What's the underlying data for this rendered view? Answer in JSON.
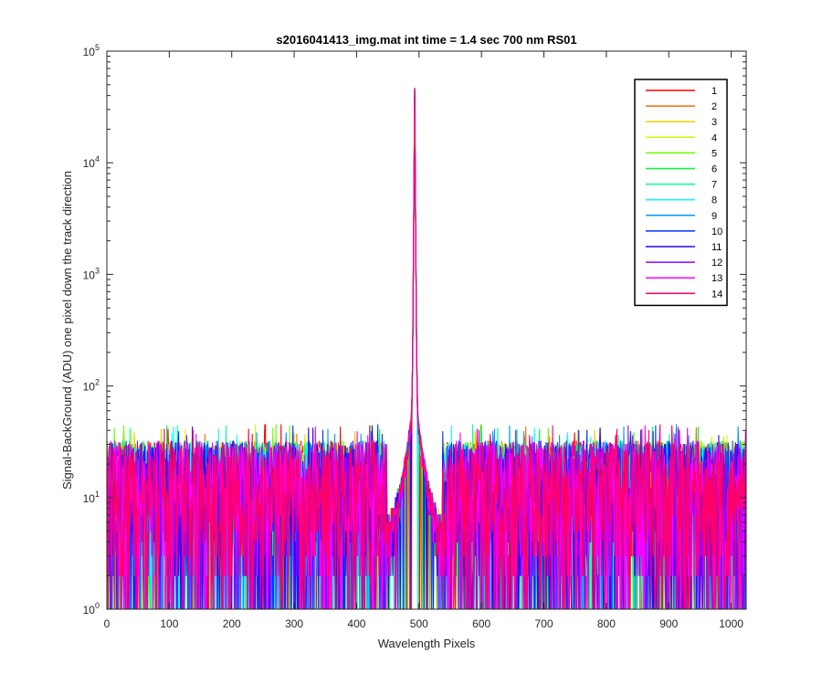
{
  "chart_data": {
    "type": "line",
    "title": "s2016041413_img.mat int time = 1.4 sec  700 nm RS01",
    "xlabel": "Wavelength Pixels",
    "ylabel": "Signal-BackGround (ADU) one pixel down the track direction",
    "xlim": [
      0,
      1024
    ],
    "ylim": [
      1,
      100000
    ],
    "yscale": "log",
    "xticks": [
      0,
      100,
      200,
      300,
      400,
      500,
      600,
      700,
      800,
      900,
      1000
    ],
    "xtick_labels": [
      "0",
      "100",
      "200",
      "300",
      "400",
      "500",
      "600",
      "700",
      "800",
      "900",
      "1000"
    ],
    "yticks": [
      1,
      10,
      100,
      1000,
      10000,
      100000
    ],
    "ytick_labels": [
      {
        "base": "10",
        "exp": "0"
      },
      {
        "base": "10",
        "exp": "1"
      },
      {
        "base": "10",
        "exp": "2"
      },
      {
        "base": "10",
        "exp": "3"
      },
      {
        "base": "10",
        "exp": "4"
      },
      {
        "base": "10",
        "exp": "5"
      }
    ],
    "grid": false,
    "legend_position": "top-right",
    "peak": {
      "x": 493,
      "y": 47000
    },
    "noise_floor_range": [
      1,
      45
    ],
    "series": [
      {
        "name": "1",
        "color": "#ff0000"
      },
      {
        "name": "2",
        "color": "#ff6a00"
      },
      {
        "name": "3",
        "color": "#ffcc00"
      },
      {
        "name": "4",
        "color": "#c8ff00"
      },
      {
        "name": "5",
        "color": "#66ff00"
      },
      {
        "name": "6",
        "color": "#00ff33"
      },
      {
        "name": "7",
        "color": "#00ffa0"
      },
      {
        "name": "8",
        "color": "#00ffff"
      },
      {
        "name": "9",
        "color": "#0099ff"
      },
      {
        "name": "10",
        "color": "#0033ff"
      },
      {
        "name": "11",
        "color": "#3300ff"
      },
      {
        "name": "12",
        "color": "#9900ff"
      },
      {
        "name": "13",
        "color": "#ff00ff"
      },
      {
        "name": "14",
        "color": "#ff0066"
      }
    ]
  }
}
